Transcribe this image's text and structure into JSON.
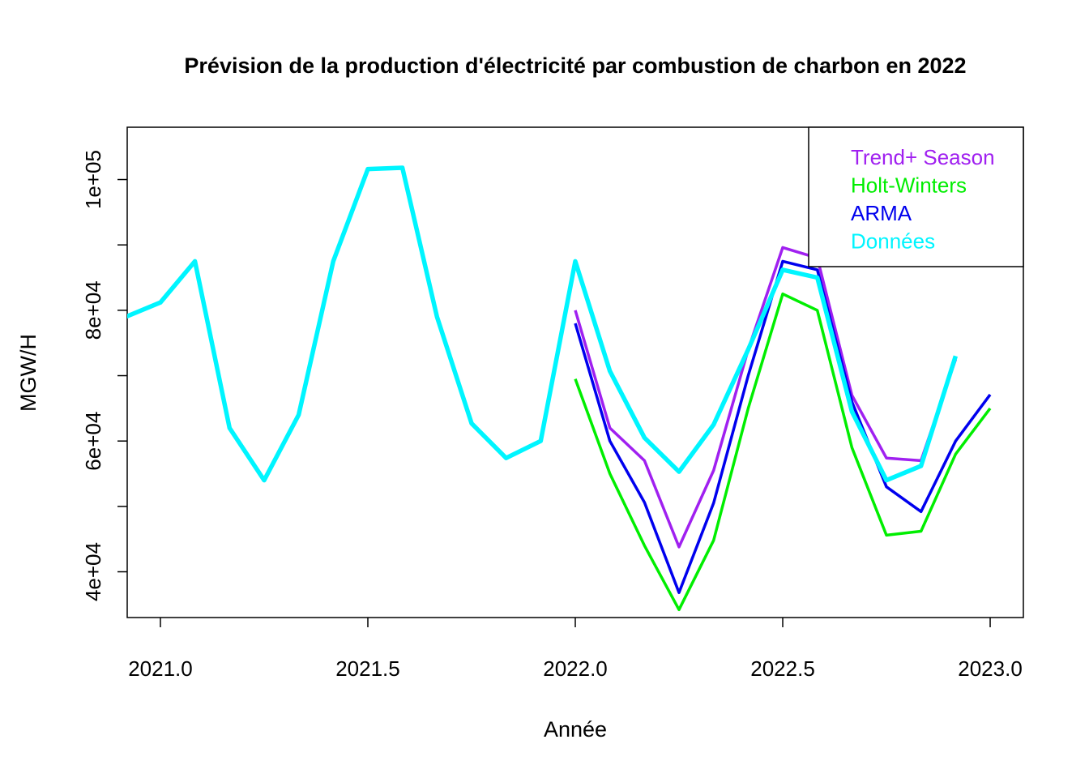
{
  "chart_data": {
    "type": "line",
    "title": "Prévision de la production d'électricité par combustion de charbon en 2022",
    "xlabel": "Année",
    "ylabel": "MGW/H",
    "xlim": [
      2020.92,
      2023.08
    ],
    "ylim": [
      33000,
      108000
    ],
    "x_ticks": [
      {
        "value": 2021.0,
        "label": "2021.0"
      },
      {
        "value": 2021.5,
        "label": "2021.5"
      },
      {
        "value": 2022.0,
        "label": "2022.0"
      },
      {
        "value": 2022.5,
        "label": "2022.5"
      },
      {
        "value": 2023.0,
        "label": "2023.0"
      }
    ],
    "y_ticks": [
      {
        "value": 40000,
        "label": "4e+04"
      },
      {
        "value": 50000,
        "label": ""
      },
      {
        "value": 60000,
        "label": "6e+04"
      },
      {
        "value": 70000,
        "label": ""
      },
      {
        "value": 80000,
        "label": "8e+04"
      },
      {
        "value": 90000,
        "label": ""
      },
      {
        "value": 100000,
        "label": "1e+05"
      }
    ],
    "grid": false,
    "legend_position": "top-right",
    "series": [
      {
        "name": "Trend+ Season",
        "color": "#A020F0",
        "x": [
          2022.0,
          2022.0833,
          2022.1667,
          2022.25,
          2022.3333,
          2022.4167,
          2022.5,
          2022.5833,
          2022.6667,
          2022.75,
          2022.8333,
          2022.9167
        ],
        "y": [
          80000,
          62000,
          57000,
          43800,
          55500,
          74000,
          89600,
          88000,
          67000,
          57400,
          57000,
          72500
        ]
      },
      {
        "name": "Holt-Winters",
        "color": "#00EE00",
        "x": [
          2022.0,
          2022.0833,
          2022.1667,
          2022.25,
          2022.3333,
          2022.4167,
          2022.5,
          2022.5833,
          2022.6667,
          2022.75,
          2022.8333,
          2022.9167,
          2023.0
        ],
        "y": [
          69500,
          55000,
          44000,
          34200,
          44800,
          65000,
          82500,
          80000,
          59000,
          45600,
          46200,
          58000,
          65000
        ]
      },
      {
        "name": "ARMA",
        "color": "#0000EE",
        "x": [
          2022.0,
          2022.0833,
          2022.1667,
          2022.25,
          2022.3333,
          2022.4167,
          2022.5,
          2022.5833,
          2022.6667,
          2022.75,
          2022.8333,
          2022.9167,
          2023.0
        ],
        "y": [
          78000,
          60000,
          50600,
          36800,
          50500,
          70000,
          87500,
          86200,
          66000,
          53000,
          49200,
          60000,
          67100
        ]
      },
      {
        "name": "Données",
        "color": "#00F5FF",
        "x": [
          2020.9167,
          2021.0,
          2021.0833,
          2021.1667,
          2021.25,
          2021.3333,
          2021.4167,
          2021.5,
          2021.5833,
          2021.6667,
          2021.75,
          2021.8333,
          2021.9167,
          2022.0,
          2022.0833,
          2022.1667,
          2022.25,
          2022.3333,
          2022.4167,
          2022.5,
          2022.5833,
          2022.6667,
          2022.75,
          2022.8333,
          2022.9167
        ],
        "y": [
          79000,
          81200,
          87500,
          62000,
          54000,
          64000,
          87500,
          101600,
          101800,
          79000,
          62700,
          57400,
          60000,
          87500,
          70700,
          60500,
          55300,
          62500,
          74000,
          86200,
          85000,
          64500,
          54000,
          56200,
          73000
        ]
      }
    ]
  }
}
